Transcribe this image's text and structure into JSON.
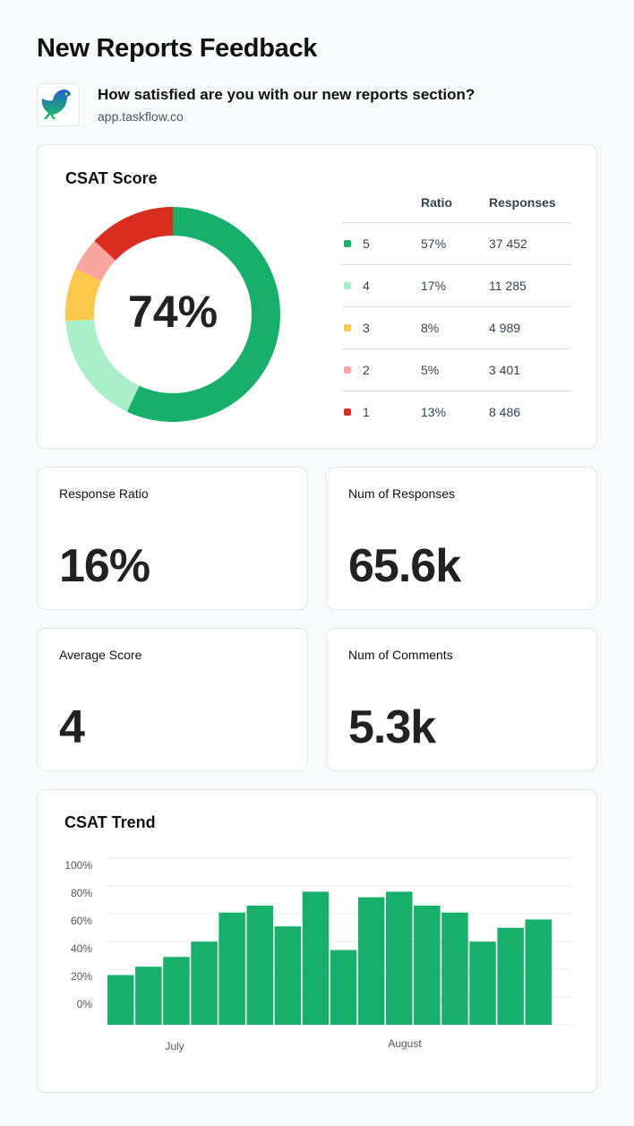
{
  "header": {
    "title": "New Reports Feedback",
    "question": "How satisfied are you with our new reports section?",
    "url": "app.taskflow.co",
    "logo": "bird-logo"
  },
  "csat": {
    "title": "CSAT Score",
    "score": "74%",
    "columns": {
      "ratio": "Ratio",
      "responses": "Responses"
    },
    "rows": [
      {
        "label": "5",
        "ratio": "57%",
        "responses": "37 452",
        "color": "#16b06a",
        "share": 57
      },
      {
        "label": "4",
        "ratio": "17%",
        "responses": "11 285",
        "color": "#a9efc8",
        "share": 17
      },
      {
        "label": "3",
        "ratio": "8%",
        "responses": "4 989",
        "color": "#fcc84a",
        "share": 8
      },
      {
        "label": "2",
        "ratio": "5%",
        "responses": "3 401",
        "color": "#fca5a0",
        "share": 5
      },
      {
        "label": "1",
        "ratio": "13%",
        "responses": "8 486",
        "color": "#d92d20",
        "share": 13
      }
    ]
  },
  "stats": [
    {
      "label": "Response Ratio",
      "value": "16%"
    },
    {
      "label": "Num of Responses",
      "value": "65.6k"
    },
    {
      "label": "Average Score",
      "value": "4"
    },
    {
      "label": "Num of Comments",
      "value": "5.3k"
    }
  ],
  "chart_data": {
    "type": "bar",
    "title": "CSAT Trend",
    "ylim": [
      0,
      100
    ],
    "yticks": [
      "100%",
      "80%",
      "60%",
      "40%",
      "20%",
      "0%"
    ],
    "xlabels": [
      "July",
      "August"
    ],
    "grid": true,
    "color": "#16b06a",
    "values": [
      21,
      27,
      34,
      45,
      66,
      71,
      56,
      81,
      39,
      77,
      81,
      71,
      66,
      45,
      55,
      61
    ]
  }
}
